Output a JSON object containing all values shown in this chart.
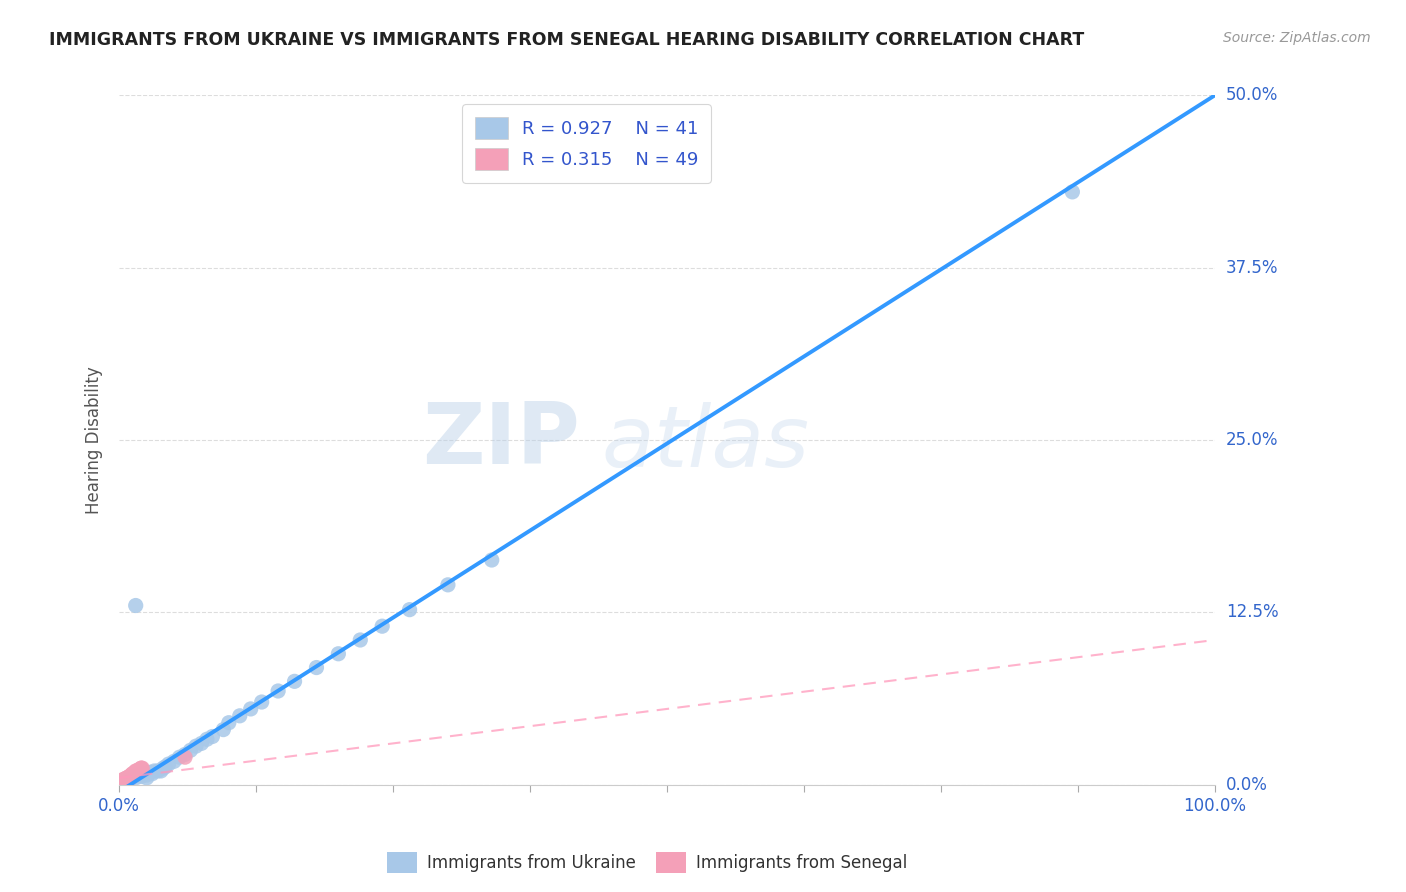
{
  "title": "IMMIGRANTS FROM UKRAINE VS IMMIGRANTS FROM SENEGAL HEARING DISABILITY CORRELATION CHART",
  "source": "Source: ZipAtlas.com",
  "ylabel": "Hearing Disability",
  "xlim": [
    0.0,
    1.0
  ],
  "ylim": [
    0.0,
    0.5
  ],
  "yticks": [
    0.0,
    0.125,
    0.25,
    0.375,
    0.5
  ],
  "ytick_labels": [
    "0.0%",
    "12.5%",
    "25.0%",
    "37.5%",
    "50.0%"
  ],
  "xticks": [
    0.0,
    0.125,
    0.25,
    0.375,
    0.5,
    0.625,
    0.75,
    0.875,
    1.0
  ],
  "xtick_labels": [
    "0.0%",
    "",
    "",
    "",
    "",
    "",
    "",
    "",
    "100.0%"
  ],
  "ukraine_R": 0.927,
  "ukraine_N": 41,
  "senegal_R": 0.315,
  "senegal_N": 49,
  "ukraine_color": "#a8c8e8",
  "senegal_color": "#f4a0b8",
  "ukraine_line_color": "#3399ff",
  "senegal_line_color": "#ff99bb",
  "grid_color": "#dddddd",
  "title_color": "#222222",
  "legend_text_color": "#3355cc",
  "axis_label_color": "#3366cc",
  "watermark_zip": "ZIP",
  "watermark_atlas": "atlas",
  "ukraine_line_slope": 0.505,
  "ukraine_line_intercept": -0.005,
  "senegal_line_slope": 0.1,
  "senegal_line_intercept": 0.005,
  "ukraine_scatter_x": [
    0.008,
    0.01,
    0.012,
    0.015,
    0.018,
    0.02,
    0.022,
    0.025,
    0.028,
    0.03,
    0.032,
    0.035,
    0.038,
    0.04,
    0.042,
    0.045,
    0.05,
    0.055,
    0.06,
    0.065,
    0.07,
    0.075,
    0.08,
    0.085,
    0.095,
    0.1,
    0.11,
    0.12,
    0.13,
    0.145,
    0.16,
    0.18,
    0.2,
    0.22,
    0.24,
    0.265,
    0.3,
    0.34,
    0.015,
    0.025,
    0.87
  ],
  "ukraine_scatter_y": [
    0.005,
    0.004,
    0.006,
    0.005,
    0.007,
    0.006,
    0.008,
    0.007,
    0.009,
    0.008,
    0.01,
    0.01,
    0.01,
    0.012,
    0.013,
    0.015,
    0.017,
    0.02,
    0.022,
    0.025,
    0.028,
    0.03,
    0.033,
    0.035,
    0.04,
    0.045,
    0.05,
    0.055,
    0.06,
    0.068,
    0.075,
    0.085,
    0.095,
    0.105,
    0.115,
    0.127,
    0.145,
    0.163,
    0.13,
    0.005,
    0.43
  ],
  "senegal_scatter_x": [
    0.003,
    0.004,
    0.005,
    0.005,
    0.006,
    0.007,
    0.007,
    0.008,
    0.008,
    0.009,
    0.009,
    0.01,
    0.01,
    0.01,
    0.011,
    0.011,
    0.012,
    0.012,
    0.013,
    0.013,
    0.014,
    0.015,
    0.015,
    0.016,
    0.017,
    0.018,
    0.019,
    0.02,
    0.02,
    0.021,
    0.003,
    0.004,
    0.005,
    0.006,
    0.007,
    0.007,
    0.008,
    0.009,
    0.004,
    0.005,
    0.006,
    0.006,
    0.007,
    0.008,
    0.009,
    0.01,
    0.011,
    0.012,
    0.06
  ],
  "senegal_scatter_y": [
    0.003,
    0.003,
    0.004,
    0.004,
    0.003,
    0.004,
    0.005,
    0.004,
    0.005,
    0.005,
    0.006,
    0.005,
    0.006,
    0.006,
    0.007,
    0.007,
    0.007,
    0.008,
    0.008,
    0.008,
    0.009,
    0.009,
    0.01,
    0.01,
    0.01,
    0.011,
    0.011,
    0.012,
    0.012,
    0.012,
    0.003,
    0.004,
    0.003,
    0.004,
    0.004,
    0.005,
    0.005,
    0.005,
    0.003,
    0.003,
    0.004,
    0.004,
    0.004,
    0.005,
    0.005,
    0.005,
    0.006,
    0.006,
    0.02
  ]
}
